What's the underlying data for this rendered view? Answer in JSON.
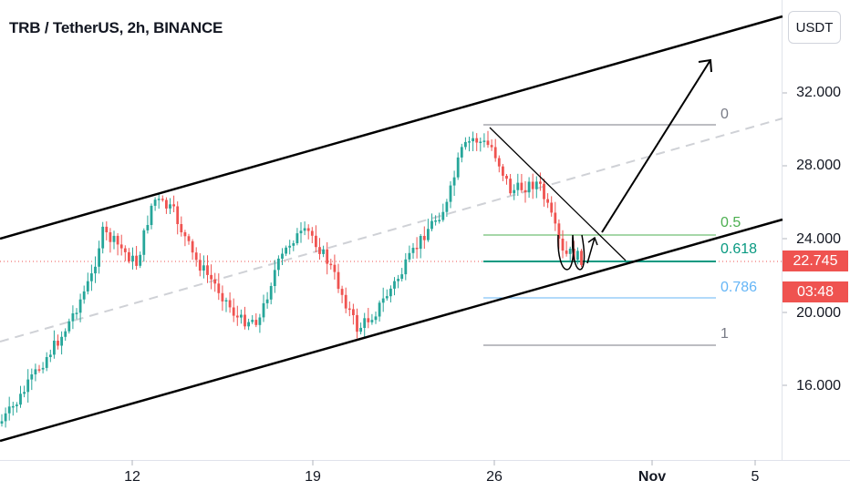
{
  "header": {
    "symbol_title": "TRB / TetherUS, 2h, BINANCE"
  },
  "currency_button": {
    "label": "USDT"
  },
  "price_axis": {
    "labels": [
      "32.000",
      "28.000",
      "24.000",
      "20.000",
      "16.000"
    ]
  },
  "time_axis": {
    "labels": [
      "12",
      "19",
      "26",
      "Nov",
      "5"
    ]
  },
  "current_price": {
    "value": "22.745",
    "countdown": "03:48",
    "color": "#ef5350"
  },
  "fib_levels": [
    {
      "label": "0",
      "color": "#787b86"
    },
    {
      "label": "0.5",
      "color": "#4caf50"
    },
    {
      "label": "0.618",
      "color": "#089981"
    },
    {
      "label": "0.786",
      "color": "#64b5f6"
    },
    {
      "label": "1",
      "color": "#787b86"
    }
  ],
  "colors": {
    "up": "#26a69a",
    "down": "#ef5350",
    "channel": "#000000",
    "midline": "#cfd1d6"
  }
}
